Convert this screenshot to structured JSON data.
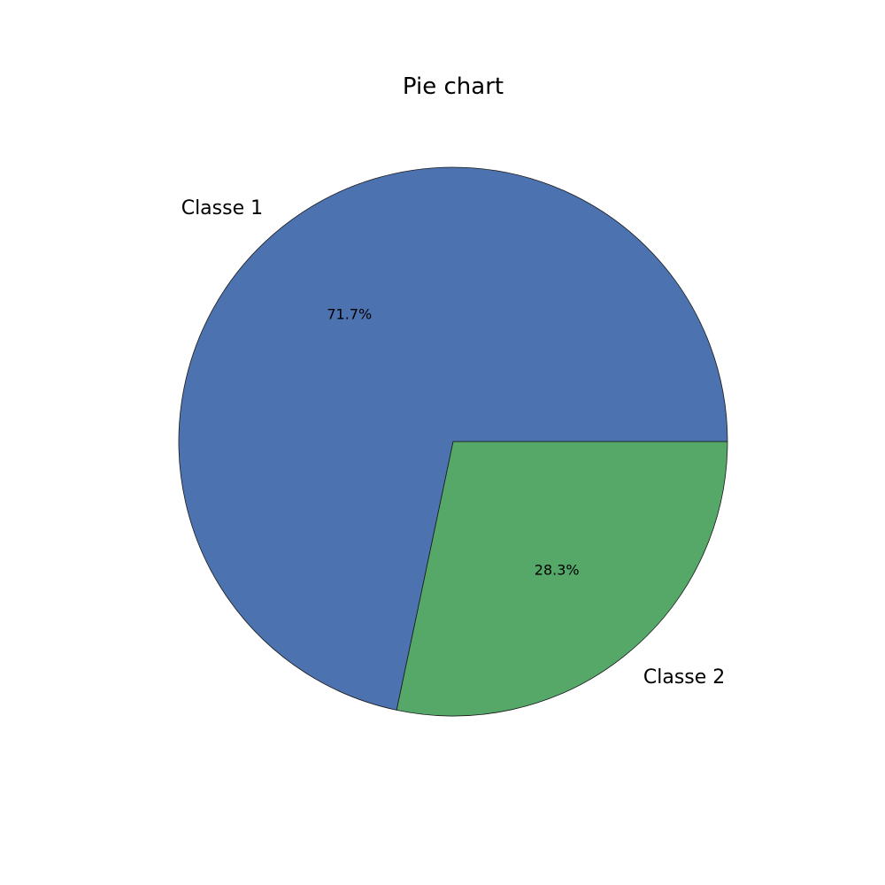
{
  "chart_data": {
    "type": "pie",
    "title": "Pie chart",
    "slices": [
      {
        "label": "Classe 1",
        "value": 71.7,
        "pct_label": "71.7%",
        "color": "#4c72b0"
      },
      {
        "label": "Classe 2",
        "value": 28.3,
        "pct_label": "28.3%",
        "color": "#55a868"
      }
    ],
    "start_angle_deg": 0,
    "direction": "counterclockwise",
    "legend": "none"
  }
}
